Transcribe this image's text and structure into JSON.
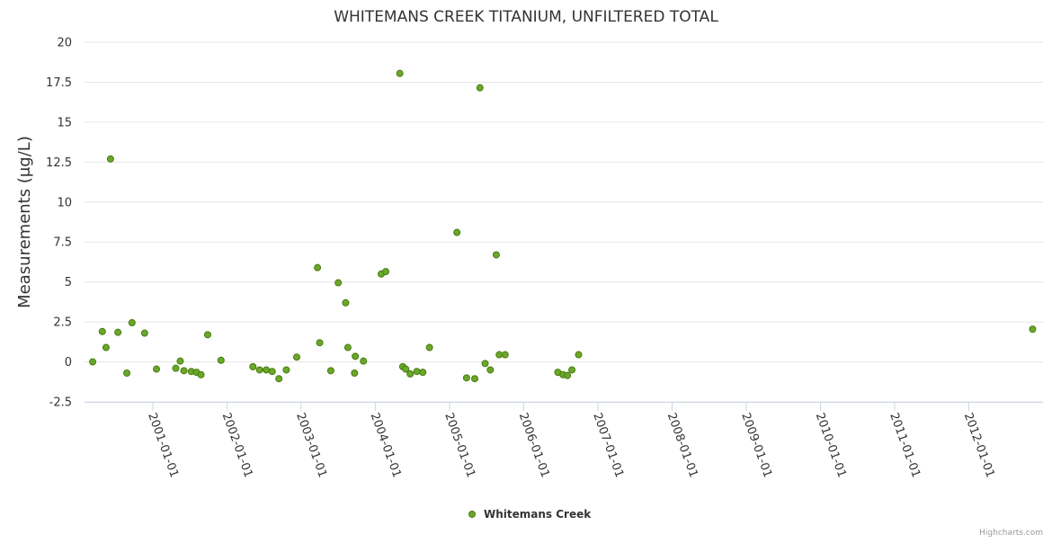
{
  "chart_data": {
    "type": "scatter",
    "title": "WHITEMANS CREEK TITANIUM, UNFILTERED TOTAL",
    "xlabel": "",
    "ylabel": "Measurements (μg/L)",
    "ylim": [
      -2.5,
      20
    ],
    "yticks": [
      "-2.5",
      "0",
      "2.5",
      "5",
      "7.5",
      "10",
      "12.5",
      "15",
      "17.5",
      "20"
    ],
    "ytick_values": [
      -2.5,
      0,
      2.5,
      5,
      7.5,
      10,
      12.5,
      15,
      17.5,
      20
    ],
    "xlim": [
      2000.08,
      2013.0
    ],
    "xticks": [
      "2001-01-01",
      "2002-01-01",
      "2003-01-01",
      "2004-01-01",
      "2005-01-01",
      "2006-01-01",
      "2007-01-01",
      "2008-01-01",
      "2009-01-01",
      "2010-01-01",
      "2011-01-01",
      "2012-01-01"
    ],
    "xtick_values": [
      2001,
      2002,
      2003,
      2004,
      2005,
      2006,
      2007,
      2008,
      2009,
      2010,
      2011,
      2012
    ],
    "grid": true,
    "legend_position": "bottom-center",
    "marker_color": "#6aa82b",
    "marker_edge": "#4a7a10",
    "series": [
      {
        "name": "Whitemans Creek",
        "x": [
          2000.19,
          2000.32,
          2000.37,
          2000.43,
          2000.53,
          2000.65,
          2000.72,
          2000.89,
          2001.05,
          2001.31,
          2001.37,
          2001.42,
          2001.52,
          2001.59,
          2001.65,
          2001.74,
          2001.92,
          2002.35,
          2002.44,
          2002.53,
          2002.61,
          2002.7,
          2002.8,
          2002.94,
          2003.22,
          2003.25,
          2003.4,
          2003.5,
          2003.6,
          2003.63,
          2003.72,
          2003.73,
          2003.84,
          2004.08,
          2004.14,
          2004.33,
          2004.37,
          2004.41,
          2004.47,
          2004.56,
          2004.64,
          2004.73,
          2005.1,
          2005.23,
          2005.34,
          2005.41,
          2005.48,
          2005.55,
          2005.63,
          2005.67,
          2005.75,
          2006.46,
          2006.53,
          2006.59,
          2006.65,
          2006.74,
          2012.86
        ],
        "y": [
          0.0,
          1.9,
          0.9,
          12.7,
          1.85,
          -0.7,
          2.45,
          1.8,
          -0.45,
          -0.4,
          0.05,
          -0.55,
          -0.6,
          -0.65,
          -0.8,
          1.7,
          0.1,
          -0.3,
          -0.5,
          -0.5,
          -0.6,
          -1.05,
          -0.5,
          0.3,
          5.9,
          1.2,
          -0.55,
          4.95,
          3.7,
          0.9,
          -0.7,
          0.35,
          0.05,
          5.5,
          5.65,
          18.05,
          -0.3,
          -0.45,
          -0.75,
          -0.6,
          -0.65,
          0.9,
          8.1,
          -1.0,
          -1.05,
          17.15,
          -0.1,
          -0.5,
          6.7,
          0.45,
          0.45,
          -0.65,
          -0.8,
          -0.85,
          -0.5,
          0.45,
          2.05
        ]
      }
    ]
  },
  "credits": "Highcharts.com"
}
